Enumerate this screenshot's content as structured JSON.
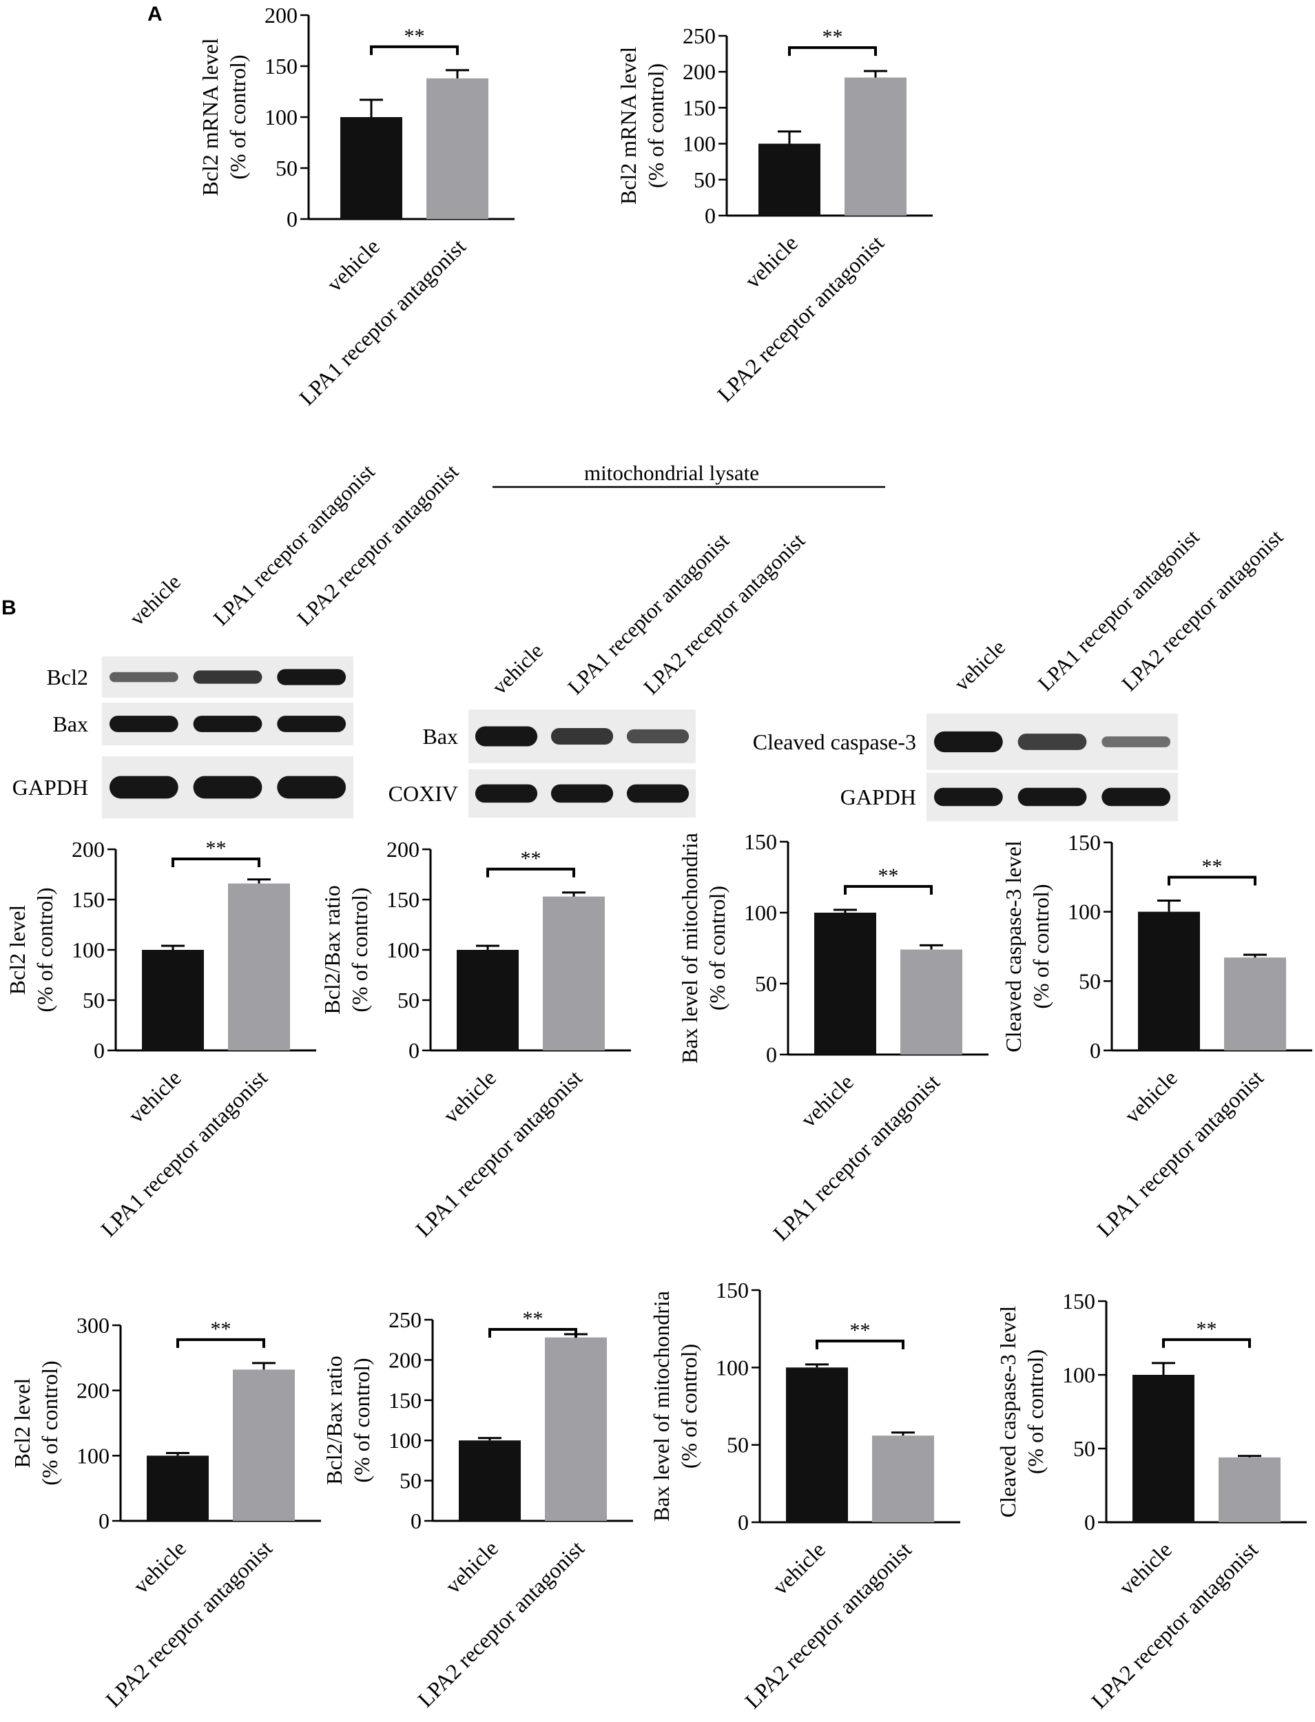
{
  "panels": {
    "a": "A",
    "b": "B"
  },
  "colors": {
    "vehicle": "#111111",
    "treatment": "#a0a0a4",
    "blot_bg": "#ececec",
    "band": "#161616"
  },
  "blots": [
    {
      "group_label": "",
      "lanes": [
        "vehicle",
        "LPA1 receptor antagonist",
        "LPA2 receptor antagonist"
      ],
      "rows": [
        {
          "label": "Bcl2",
          "intensity": [
            0.55,
            0.8,
            1.0
          ]
        },
        {
          "label": "Bax",
          "intensity": [
            1.0,
            1.0,
            1.0
          ]
        },
        {
          "label": "GAPDH",
          "intensity": [
            1.0,
            1.0,
            1.0
          ]
        }
      ]
    },
    {
      "group_label": "mitochondrial lysate",
      "lanes": [
        "vehicle",
        "LPA1 receptor antagonist",
        "LPA2 receptor antagonist"
      ],
      "rows": [
        {
          "label": "Bax",
          "intensity": [
            1.0,
            0.8,
            0.65
          ]
        },
        {
          "label": "COXIV",
          "intensity": [
            1.0,
            1.0,
            1.0
          ]
        }
      ]
    },
    {
      "group_label": "",
      "lanes": [
        "vehicle",
        "LPA1 receptor antagonist",
        "LPA2 receptor antagonist"
      ],
      "rows": [
        {
          "label": "Cleaved caspase-3",
          "intensity": [
            1.0,
            0.75,
            0.45
          ]
        },
        {
          "label": "GAPDH",
          "intensity": [
            1.0,
            1.0,
            1.0
          ]
        }
      ]
    }
  ],
  "chart_data": [
    {
      "type": "bar",
      "categories": [
        "vehicle",
        "LPA1 receptor antagonist"
      ],
      "values": [
        100,
        138
      ],
      "errors": [
        17,
        8
      ],
      "significance": "**",
      "ylabel": [
        "Bcl2 mRNA level",
        "(% of control)"
      ],
      "ylim": [
        0,
        200
      ],
      "yticks": [
        0,
        50,
        100,
        150,
        200
      ]
    },
    {
      "type": "bar",
      "categories": [
        "vehicle",
        "LPA2 receptor antagonist"
      ],
      "values": [
        100,
        192
      ],
      "errors": [
        17,
        9
      ],
      "significance": "**",
      "ylabel": [
        "Bcl2 mRNA level",
        "(% of control)"
      ],
      "ylim": [
        0,
        250
      ],
      "yticks": [
        0,
        50,
        100,
        150,
        200,
        250
      ]
    },
    {
      "type": "bar",
      "categories": [
        "vehicle",
        "LPA1 receptor antagonist"
      ],
      "values": [
        100,
        166
      ],
      "errors": [
        4,
        4
      ],
      "significance": "**",
      "ylabel": [
        "Bcl2 level",
        "(% of control)"
      ],
      "ylim": [
        0,
        200
      ],
      "yticks": [
        0,
        50,
        100,
        150,
        200
      ]
    },
    {
      "type": "bar",
      "categories": [
        "vehicle",
        "LPA1 receptor antagonist"
      ],
      "values": [
        100,
        153
      ],
      "errors": [
        4,
        4
      ],
      "significance": "**",
      "ylabel": [
        "Bcl2/Bax ratio",
        "(% of control)"
      ],
      "ylim": [
        0,
        200
      ],
      "yticks": [
        0,
        50,
        100,
        150,
        200
      ]
    },
    {
      "type": "bar",
      "categories": [
        "vehicle",
        "LPA1 receptor antagonist"
      ],
      "values": [
        100,
        74
      ],
      "errors": [
        2,
        3
      ],
      "significance": "**",
      "ylabel": [
        "Bax level of mitochondria",
        "(% of control)"
      ],
      "ylim": [
        0,
        150
      ],
      "yticks": [
        0,
        50,
        100,
        150
      ]
    },
    {
      "type": "bar",
      "categories": [
        "vehicle",
        "LPA1 receptor antagonist"
      ],
      "values": [
        100,
        67
      ],
      "errors": [
        8,
        2
      ],
      "significance": "**",
      "ylabel": [
        "Cleaved caspase-3 level",
        "(% of control)"
      ],
      "ylim": [
        0,
        150
      ],
      "yticks": [
        0,
        50,
        100,
        150
      ]
    },
    {
      "type": "bar",
      "categories": [
        "vehicle",
        "LPA2 receptor antagonist"
      ],
      "values": [
        100,
        232
      ],
      "errors": [
        4,
        10
      ],
      "significance": "**",
      "ylabel": [
        "Bcl2 level",
        "(% of control)"
      ],
      "ylim": [
        0,
        300
      ],
      "yticks": [
        0,
        100,
        200,
        300
      ]
    },
    {
      "type": "bar",
      "categories": [
        "vehicle",
        "LPA2 receptor antagonist"
      ],
      "values": [
        100,
        228
      ],
      "errors": [
        3,
        4
      ],
      "significance": "**",
      "ylabel": [
        "Bcl2/Bax ratio",
        "(% of control)"
      ],
      "ylim": [
        0,
        250
      ],
      "yticks": [
        0,
        50,
        100,
        150,
        200,
        250
      ]
    },
    {
      "type": "bar",
      "categories": [
        "vehicle",
        "LPA2 receptor antagonist"
      ],
      "values": [
        100,
        56
      ],
      "errors": [
        2,
        2
      ],
      "significance": "**",
      "ylabel": [
        "Bax level of mitochondria",
        "(% of control)"
      ],
      "ylim": [
        0,
        150
      ],
      "yticks": [
        0,
        50,
        100,
        150
      ]
    },
    {
      "type": "bar",
      "categories": [
        "vehicle",
        "LPA2 receptor antagonist"
      ],
      "values": [
        100,
        44
      ],
      "errors": [
        8,
        1
      ],
      "significance": "**",
      "ylabel": [
        "Cleaved caspase-3 level",
        "(% of control)"
      ],
      "ylim": [
        0,
        150
      ],
      "yticks": [
        0,
        50,
        100,
        150
      ]
    }
  ]
}
